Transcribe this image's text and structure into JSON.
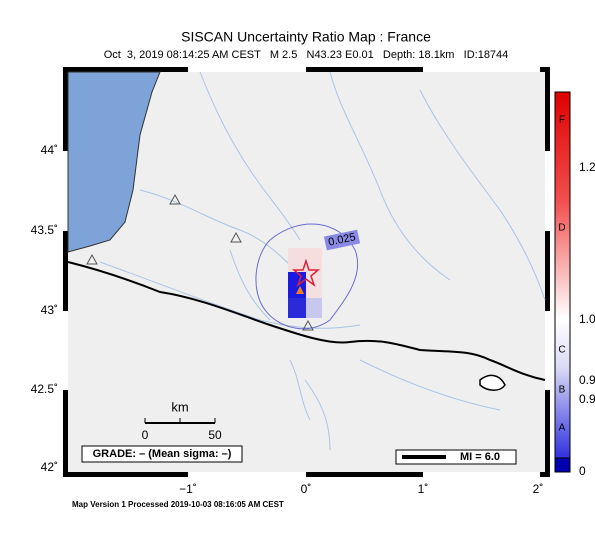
{
  "header": {
    "title": "SISCAN Uncertainty Ratio Map : France",
    "subtitle": "Oct  3, 2019 08:14:25 AM CEST   M 2.5   N43.23 E0.01   Depth: 18.1km   ID:18744"
  },
  "map": {
    "lat_labels": [
      "44˚",
      "43.5˚",
      "43˚",
      "42.5˚",
      "42˚"
    ],
    "lon_labels": [
      "−1˚",
      "0˚",
      "1˚",
      "2˚"
    ],
    "contour_label": "0.025",
    "scale": {
      "unit": "km",
      "ticks": [
        "0",
        "50"
      ]
    },
    "grade": "GRADE: – (Mean sigma: –)",
    "mi": "MI = 6.0"
  },
  "colorbar": {
    "labels": [
      "1.2",
      "1.0",
      "0.9",
      "0.9",
      "0"
    ],
    "grades": [
      "F",
      "D",
      "C",
      "B",
      "A"
    ]
  },
  "footer": "Map Version 1 Processed 2019-10-03 08:16:05 AM CEST"
}
